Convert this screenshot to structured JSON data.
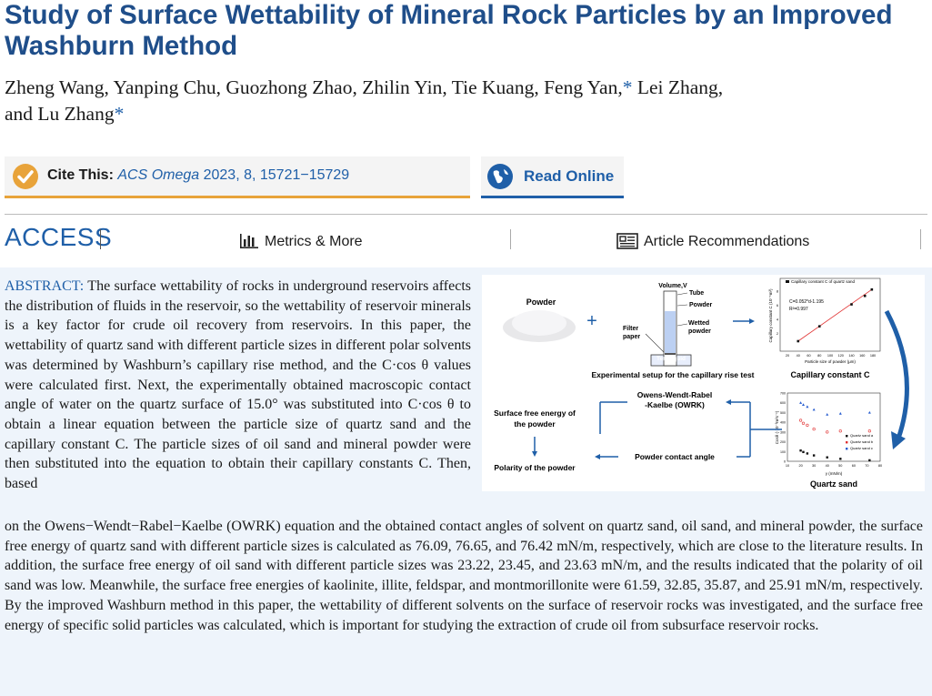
{
  "title": "Study of Surface Wettability of Mineral Rock Particles by an Improved Washburn Method",
  "authors": {
    "line1": "Zheng Wang, Yanping Chu, Guozhong Zhao, Zhilin Yin, Tie Kuang, Feng Yan,",
    "star1": "*",
    "line1b": " Lei Zhang,",
    "line2": "and Lu Zhang",
    "star2": "*"
  },
  "cite": {
    "label": "Cite This:",
    "journal": "ACS Omega",
    "details": " 2023, 8, 15721−15729"
  },
  "read_online": "Read Online",
  "access": {
    "label": "ACCESS",
    "metrics": "Metrics & More",
    "recommendations": "Article Recommendations"
  },
  "abstract": {
    "label": "ABSTRACT:",
    "part1": " The surface wettability of rocks in underground reservoirs affects the distribution of fluids in the reservoir, so the wettability of reservoir minerals is a key factor for crude oil recovery from reservoirs. In this paper, the wettability of quartz sand with different particle sizes in different polar solvents was determined by Washburn’s capillary rise method, and the C·cos θ values were calculated first. Next, the experimentally obtained macroscopic contact angle of water on the quartz surface of 15.0° was substituted into C·cos θ to obtain a linear equation between the particle size of quartz sand and the capillary constant C. The particle sizes of oil sand and mineral powder were then substituted into the equation to obtain their capillary constants C. Then, based",
    "part2": "on the Owens−Wendt−Rabel−Kaelbe (OWRK) equation and the obtained contact angles of solvent on quartz sand, oil sand, and mineral powder, the surface free energy of quartz sand with different particle sizes is calculated as 76.09, 76.65, and 76.42 mN/m, respectively, which are close to the literature results. In addition, the surface free energy of oil sand with different particle sizes was 23.22, 23.45, and 23.63 mN/m, and the results indicated that the polarity of oil sand was low. Meanwhile, the surface free energies of kaolinite, illite, feldspar, and montmorillonite were 61.59, 32.85, 35.87, and 25.91 mN/m, respectively. By the improved Washburn method in this paper, the wettability of different solvents on the surface of reservoir rocks was investigated, and the surface free energy of specific solid particles was calculated, which is important for studying the extraction of crude oil from subsurface reservoir rocks."
  },
  "toc": {
    "powder": "Powder",
    "plus": "+",
    "volume": "Volume,V",
    "tube": "Tube",
    "powder2": "Powder",
    "wetted1": "Wetted",
    "wetted2": "powder",
    "filter1": "Filter",
    "filter2": "paper",
    "test_liquid": "Test liquid",
    "setup_caption": "Experimental setup for the capillary rise test",
    "capillary_caption": "Capillary constant C",
    "owrk1": "Owens-Wendt-Rabel",
    "owrk2": "-Kaelbe (OWRK)",
    "sfe1": "Surface free energy of",
    "sfe2": "the powder",
    "polarity": "Polarity of the powder",
    "contact": "Powder contact angle",
    "quartz_sand": "Quartz sand",
    "chart1": {
      "legend": "Capillary constant C of quartz sand",
      "equation": "C=0.052*d-1.195",
      "r2": "R²=0.997",
      "xlabel": "Particle size of powder (μm)",
      "ylabel": "Capillary constant C (10⁻⁵m³)",
      "xticks": [
        "20",
        "40",
        "60",
        "80",
        "100",
        "120",
        "140",
        "160",
        "180"
      ],
      "yticks": [
        "2",
        "4",
        "6",
        "8"
      ],
      "x": [
        40,
        80,
        140,
        165,
        178
      ],
      "y": [
        0.9,
        3.0,
        6.1,
        7.3,
        8.2
      ]
    },
    "chart2": {
      "xlabel": "γ (mN/m)",
      "ylabel": "Cosθ (·10⁻³m²s⁻¹)",
      "legend": [
        "Quartz sand a",
        "Quartz sand b",
        "Quartz sand c"
      ],
      "xticks": [
        "10",
        "20",
        "30",
        "40",
        "50",
        "60",
        "70",
        "80"
      ],
      "yticks": [
        "0",
        "100",
        "200",
        "300",
        "400",
        "500",
        "600",
        "700"
      ],
      "series": [
        {
          "name": "Quartz sand a",
          "x": [
            20,
            22,
            25,
            30,
            40,
            50,
            72
          ],
          "y": [
            110,
            95,
            80,
            60,
            40,
            25,
            10
          ],
          "color": "#111111"
        },
        {
          "name": "Quartz sand b",
          "x": [
            20,
            22,
            25,
            30,
            40,
            50,
            72
          ],
          "y": [
            420,
            390,
            370,
            330,
            300,
            310,
            310
          ],
          "color": "#e03030"
        },
        {
          "name": "Quartz sand c",
          "x": [
            20,
            22,
            25,
            30,
            40,
            50,
            72
          ],
          "y": [
            600,
            580,
            560,
            530,
            480,
            490,
            500
          ],
          "color": "#2a5fd0"
        }
      ]
    }
  }
}
